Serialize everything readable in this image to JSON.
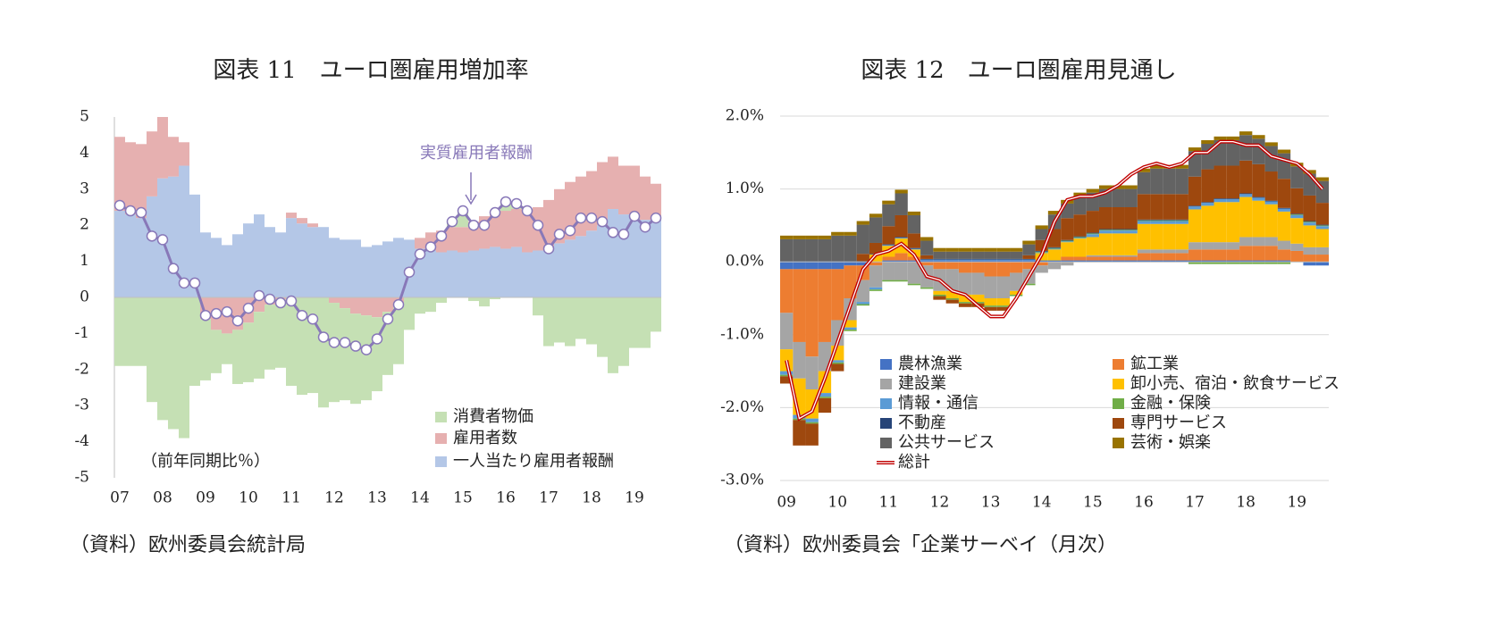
{
  "chart_data": [
    {
      "type": "bar",
      "stacked": true,
      "title": "図表 11　ユーロ圏雇用増加率",
      "annotation": "（前年同期比％）",
      "note": "（資料）欧州委員会統計局",
      "categories": [
        "07",
        null,
        null,
        null,
        "08",
        null,
        null,
        null,
        "09",
        null,
        null,
        null,
        "10",
        null,
        null,
        null,
        "11",
        null,
        null,
        null,
        "12",
        null,
        null,
        null,
        "13",
        null,
        null,
        null,
        "14",
        null,
        null,
        null,
        "15",
        null,
        null,
        null,
        "16",
        null,
        null,
        null,
        "17",
        null,
        null,
        null,
        "18",
        null,
        null,
        null,
        "19",
        null,
        null
      ],
      "ylim": [
        -5,
        5
      ],
      "yticks": [
        -5,
        -4,
        -3,
        -2,
        -1,
        0,
        1,
        2,
        3,
        4,
        5
      ],
      "grid": false,
      "series": [
        {
          "name": "一人当たり雇用者報酬",
          "color": "#b4c7e7",
          "values": [
            2.4,
            2.3,
            2.2,
            2.8,
            3.3,
            3.35,
            3.65,
            2.85,
            1.8,
            1.65,
            1.45,
            1.75,
            2.05,
            2.3,
            1.95,
            1.8,
            2.2,
            2.05,
            1.95,
            1.95,
            1.65,
            1.6,
            1.6,
            1.4,
            1.45,
            1.55,
            1.65,
            1.6,
            1.35,
            1.3,
            1.25,
            1.3,
            1.25,
            1.3,
            1.35,
            1.4,
            1.35,
            1.4,
            1.25,
            1.3,
            1.35,
            1.5,
            1.6,
            1.7,
            1.85,
            2.0,
            2.45,
            2.3,
            2.2,
            2.15,
            2.15
          ]
        },
        {
          "name": "雇用者数",
          "color": "#e6b0b0",
          "values": [
            2.05,
            2.0,
            2.05,
            1.8,
            1.7,
            1.1,
            0.65,
            0.0,
            -0.6,
            -0.9,
            -1.0,
            -0.9,
            -0.7,
            -0.4,
            -0.2,
            -0.05,
            0.15,
            0.15,
            0.1,
            0.0,
            -0.15,
            -0.3,
            -0.45,
            -0.5,
            -0.55,
            -0.4,
            -0.2,
            0.0,
            0.3,
            0.5,
            0.6,
            0.65,
            0.7,
            0.8,
            0.9,
            1.0,
            1.05,
            1.05,
            1.15,
            1.2,
            1.35,
            1.5,
            1.6,
            1.65,
            1.65,
            1.75,
            1.45,
            1.35,
            1.45,
            1.2,
            1.0
          ]
        },
        {
          "name": "消費者物価",
          "color": "#c5e0b4",
          "values": [
            -1.9,
            -1.9,
            -1.9,
            -2.9,
            -3.4,
            -3.65,
            -3.9,
            -2.45,
            -1.7,
            -1.2,
            -0.85,
            -1.5,
            -1.65,
            -1.85,
            -1.8,
            -1.9,
            -2.45,
            -2.7,
            -2.65,
            -3.05,
            -2.75,
            -2.55,
            -2.5,
            -2.35,
            -2.05,
            -1.75,
            -1.65,
            -0.9,
            -0.45,
            -0.4,
            -0.15,
            0.15,
            0.45,
            -0.1,
            -0.25,
            -0.05,
            0.25,
            0.15,
            0.0,
            -0.5,
            -1.35,
            -1.25,
            -1.35,
            -1.15,
            -1.3,
            -1.65,
            -2.1,
            -1.9,
            -1.4,
            -1.4,
            -0.95
          ]
        },
        {
          "name": "実質雇用者報酬",
          "type": "line",
          "marker": true,
          "color": "#8878b8",
          "values": [
            2.55,
            2.4,
            2.35,
            1.7,
            1.6,
            0.8,
            0.4,
            0.4,
            -0.5,
            -0.45,
            -0.4,
            -0.65,
            -0.3,
            0.05,
            -0.05,
            -0.15,
            -0.1,
            -0.5,
            -0.6,
            -1.1,
            -1.25,
            -1.25,
            -1.35,
            -1.45,
            -1.15,
            -0.6,
            -0.2,
            0.7,
            1.2,
            1.4,
            1.7,
            2.1,
            2.4,
            2.0,
            2.0,
            2.35,
            2.65,
            2.6,
            2.4,
            2.0,
            1.35,
            1.75,
            1.85,
            2.2,
            2.2,
            2.1,
            1.8,
            1.75,
            2.25,
            1.95,
            2.2
          ]
        }
      ]
    },
    {
      "type": "bar",
      "stacked": true,
      "title": "図表 12　ユーロ圏雇用見通し",
      "note": "（資料）欧州委員会「企業サーベイ（月次）",
      "categories": [
        "09",
        null,
        null,
        null,
        "10",
        null,
        null,
        null,
        "11",
        null,
        null,
        null,
        "12",
        null,
        null,
        null,
        "13",
        null,
        null,
        null,
        "14",
        null,
        null,
        null,
        "15",
        null,
        null,
        null,
        "16",
        null,
        null,
        null,
        "17",
        null,
        null,
        null,
        "18",
        null,
        null,
        null,
        "19",
        null,
        null
      ],
      "ylim": [
        -3,
        2
      ],
      "yticks": [
        {
          "value": -3,
          "label": "-3.0%"
        },
        {
          "value": -2,
          "label": "-2.0%"
        },
        {
          "value": -1,
          "label": "-1.0%"
        },
        {
          "value": 0,
          "label": "0.0%"
        },
        {
          "value": 1,
          "label": "1.0%"
        },
        {
          "value": 2,
          "label": "2.0%"
        }
      ],
      "grid": true,
      "series": [
        {
          "name": "農林漁業",
          "color": "#4472c4",
          "values": [
            -0.1,
            -0.1,
            -0.1,
            -0.1,
            -0.1,
            -0.05,
            -0.05,
            0,
            0.02,
            0.02,
            0.02,
            0.02,
            0.02,
            0.02,
            0.02,
            0.02,
            0.02,
            0.02,
            0.02,
            0.02,
            0.02,
            0.02,
            0.02,
            0.02,
            0.02,
            0.02,
            0.02,
            0.02,
            0.02,
            0.02,
            0.02,
            0.02,
            0.02,
            0.02,
            0.02,
            0.02,
            0.02,
            0.02,
            0.02,
            0.02,
            0,
            -0.05,
            -0.05
          ]
        },
        {
          "name": "鉱工業",
          "color": "#ed7d31",
          "values": [
            -0.6,
            -1.0,
            -1.2,
            -1.0,
            -0.7,
            -0.45,
            -0.2,
            -0.05,
            0.05,
            0.1,
            0.05,
            -0.05,
            -0.1,
            -0.1,
            -0.15,
            -0.15,
            -0.2,
            -0.2,
            -0.15,
            -0.1,
            -0.05,
            0,
            0.05,
            0.05,
            0.05,
            0.05,
            0.05,
            0.05,
            0.1,
            0.1,
            0.1,
            0.1,
            0.15,
            0.15,
            0.15,
            0.15,
            0.2,
            0.2,
            0.2,
            0.15,
            0.15,
            0.1,
            0.1
          ]
        },
        {
          "name": "建設業",
          "color": "#a5a5a5",
          "values": [
            -0.5,
            -0.5,
            -0.45,
            -0.4,
            -0.35,
            -0.3,
            -0.3,
            -0.3,
            -0.25,
            -0.25,
            -0.3,
            -0.3,
            -0.3,
            -0.3,
            -0.3,
            -0.3,
            -0.3,
            -0.3,
            -0.25,
            -0.2,
            -0.1,
            -0.1,
            -0.05,
            0,
            0.02,
            0.02,
            0.02,
            0.02,
            0.05,
            0.05,
            0.05,
            0.05,
            0.1,
            0.1,
            0.1,
            0.1,
            0.12,
            0.12,
            0.12,
            0.12,
            0.1,
            0.1,
            0.1
          ]
        },
        {
          "name": "卸小売、宿泊・飲食サービス",
          "color": "#ffc000",
          "values": [
            -0.3,
            -0.5,
            -0.4,
            -0.3,
            -0.2,
            -0.1,
            0,
            0.1,
            0.15,
            0.2,
            0.1,
            0,
            -0.05,
            -0.1,
            -0.1,
            -0.1,
            -0.1,
            -0.1,
            -0.05,
            0,
            0.1,
            0.15,
            0.2,
            0.25,
            0.25,
            0.3,
            0.3,
            0.3,
            0.35,
            0.35,
            0.35,
            0.35,
            0.45,
            0.5,
            0.55,
            0.55,
            0.55,
            0.5,
            0.45,
            0.4,
            0.35,
            0.3,
            0.25
          ]
        },
        {
          "name": "情報・通信",
          "color": "#5b9bd5",
          "values": [
            -0.05,
            -0.05,
            -0.05,
            -0.05,
            -0.03,
            -0.03,
            -0.03,
            -0.03,
            0.01,
            0.01,
            0.01,
            0.01,
            0.01,
            0.01,
            0.01,
            0.01,
            0.01,
            0.01,
            0.01,
            0.01,
            0.01,
            0.01,
            0.01,
            0.01,
            0.04,
            0.04,
            0.04,
            0.04,
            0.04,
            0.04,
            0.04,
            0.04,
            0.04,
            0.04,
            0.04,
            0.04,
            0.04,
            0.04,
            0.04,
            0.04,
            0.04,
            0.04,
            0.04
          ]
        },
        {
          "name": "金融・保険",
          "color": "#70ad47",
          "values": [
            -0.02,
            -0.02,
            -0.02,
            -0.02,
            -0.02,
            -0.02,
            -0.02,
            -0.02,
            -0.02,
            -0.02,
            -0.02,
            -0.02,
            -0.02,
            -0.02,
            -0.02,
            -0.02,
            -0.02,
            -0.02,
            -0.02,
            -0.02,
            0.01,
            0.01,
            0.01,
            0.01,
            0.01,
            0.01,
            0.01,
            0.01,
            0.01,
            0.01,
            0.01,
            0.01,
            -0.03,
            -0.03,
            -0.03,
            -0.03,
            -0.03,
            -0.03,
            -0.03,
            -0.03,
            0.01,
            0.01,
            0.01
          ]
        },
        {
          "name": "不動産",
          "color": "#264478",
          "values": [
            0.01,
            0.01,
            0.01,
            0.01,
            0.01,
            0.01,
            0.01,
            0.01,
            0.01,
            0.01,
            0.01,
            0.01,
            0.01,
            0.01,
            0.01,
            0.01,
            0.01,
            0.01,
            0.01,
            0.01,
            0.01,
            0.01,
            0.01,
            0.01,
            0.01,
            0.01,
            0.01,
            0.01,
            0.01,
            0.01,
            0.01,
            0.01,
            0.01,
            0.01,
            0.01,
            0.01,
            0.01,
            0.01,
            0.01,
            0.01,
            0.01,
            0.01,
            0.01
          ]
        },
        {
          "name": "専門サービス",
          "color": "#9e480e",
          "values": [
            -0.1,
            -0.35,
            -0.3,
            -0.2,
            -0.1,
            0,
            0.1,
            0.15,
            0.25,
            0.3,
            0.2,
            0.05,
            -0.05,
            -0.05,
            -0.05,
            -0.05,
            -0.05,
            -0.05,
            0,
            0.05,
            0.15,
            0.25,
            0.3,
            0.3,
            0.3,
            0.3,
            0.3,
            0.3,
            0.35,
            0.35,
            0.35,
            0.35,
            0.4,
            0.45,
            0.45,
            0.45,
            0.45,
            0.45,
            0.4,
            0.4,
            0.35,
            0.35,
            0.3
          ]
        },
        {
          "name": "公共サービス",
          "color": "#636363",
          "values": [
            0.3,
            0.3,
            0.3,
            0.3,
            0.35,
            0.35,
            0.4,
            0.35,
            0.3,
            0.3,
            0.25,
            0.2,
            0.1,
            0.1,
            0.1,
            0.1,
            0.1,
            0.1,
            0.1,
            0.15,
            0.15,
            0.2,
            0.2,
            0.25,
            0.25,
            0.25,
            0.25,
            0.25,
            0.3,
            0.35,
            0.35,
            0.35,
            0.35,
            0.35,
            0.35,
            0.35,
            0.35,
            0.35,
            0.35,
            0.35,
            0.3,
            0.3,
            0.3
          ]
        },
        {
          "name": "芸術・娯楽",
          "color": "#997300",
          "values": [
            0.05,
            0.05,
            0.05,
            0.05,
            0.05,
            0.05,
            0.05,
            0.05,
            0.05,
            0.05,
            0.05,
            0.05,
            0.05,
            0.05,
            0.05,
            0.05,
            0.05,
            0.05,
            0.05,
            0.05,
            0.05,
            0.05,
            0.05,
            0.05,
            0.05,
            0.05,
            0.05,
            0.05,
            0.05,
            0.05,
            0.05,
            0.05,
            0.05,
            0.05,
            0.05,
            0.05,
            0.05,
            0.05,
            0.05,
            0.05,
            0.05,
            0.05,
            0.05
          ]
        },
        {
          "name": "総計",
          "type": "line",
          "marker": false,
          "color": "#c00000",
          "values": [
            -1.35,
            -2.15,
            -2.05,
            -1.6,
            -1.1,
            -0.6,
            -0.1,
            0.1,
            0.15,
            0.25,
            0.1,
            -0.2,
            -0.25,
            -0.4,
            -0.45,
            -0.6,
            -0.75,
            -0.75,
            -0.5,
            -0.2,
            0.1,
            0.55,
            0.85,
            0.9,
            0.9,
            0.95,
            1.05,
            1.2,
            1.3,
            1.35,
            1.3,
            1.35,
            1.5,
            1.5,
            1.65,
            1.65,
            1.6,
            1.6,
            1.45,
            1.4,
            1.35,
            1.2,
            1.0
          ]
        }
      ]
    }
  ]
}
